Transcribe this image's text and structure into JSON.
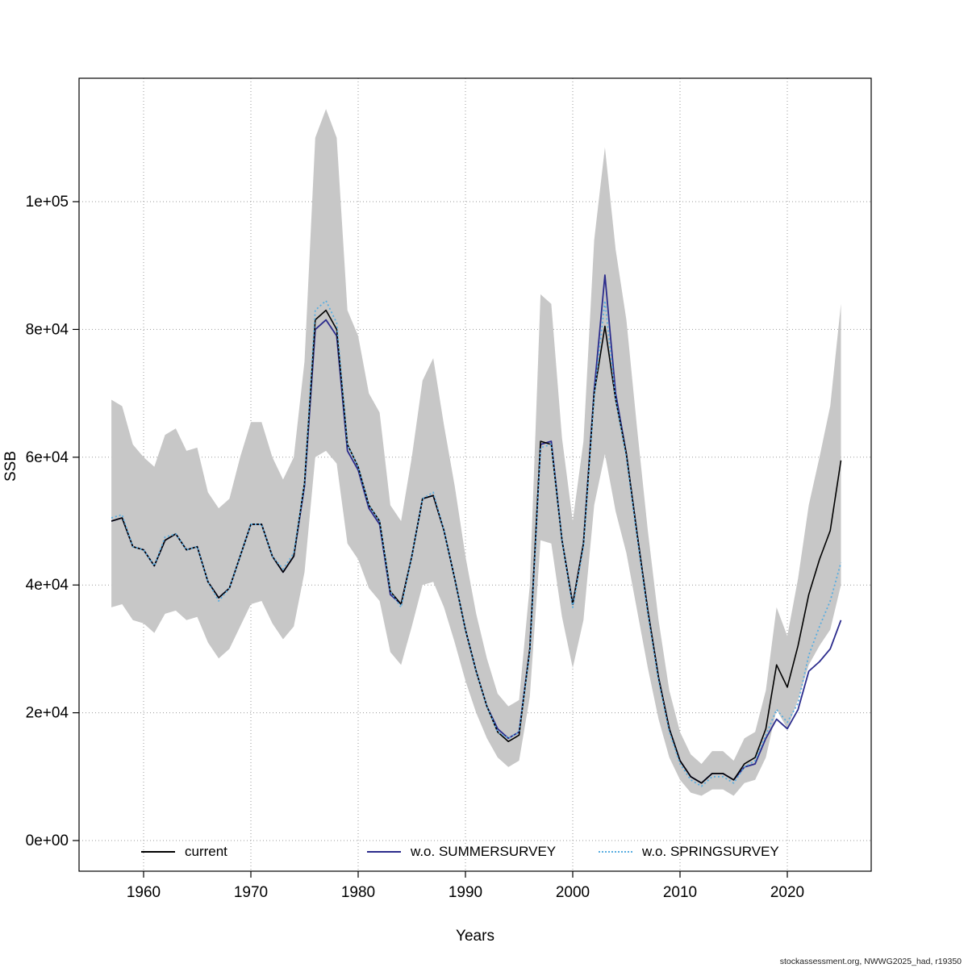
{
  "figure": {
    "footer": "stockassessment.org, NWWG2025_had, r19350"
  },
  "chart_data": {
    "type": "line",
    "title": "",
    "xlabel": "Years",
    "ylabel": "SSB",
    "grid": "dotted",
    "legend_position": "bottom-inside",
    "xlim": [
      1956,
      2026
    ],
    "ylim": [
      0,
      120000
    ],
    "xticks": [
      1960,
      1970,
      1980,
      1990,
      2000,
      2010,
      2020
    ],
    "yticks": {
      "values": [
        0,
        20000,
        40000,
        60000,
        80000,
        100000
      ],
      "labels": [
        "0e+00",
        "2e+04",
        "4e+04",
        "6e+04",
        "8e+04",
        "1e+05"
      ]
    },
    "x": [
      1957,
      1958,
      1959,
      1960,
      1961,
      1962,
      1963,
      1964,
      1965,
      1966,
      1967,
      1968,
      1969,
      1970,
      1971,
      1972,
      1973,
      1974,
      1975,
      1976,
      1977,
      1978,
      1979,
      1980,
      1981,
      1982,
      1983,
      1984,
      1985,
      1986,
      1987,
      1988,
      1989,
      1990,
      1991,
      1992,
      1993,
      1994,
      1995,
      1996,
      1997,
      1998,
      1999,
      2000,
      2001,
      2002,
      2003,
      2004,
      2005,
      2006,
      2007,
      2008,
      2009,
      2010,
      2011,
      2012,
      2013,
      2014,
      2015,
      2016,
      2017,
      2018,
      2019,
      2020,
      2021,
      2022,
      2023,
      2024,
      2025
    ],
    "series": [
      {
        "name": "current",
        "color": "#000000",
        "style": "solid",
        "values": [
          50000,
          50500,
          46000,
          45500,
          43000,
          47000,
          48000,
          45500,
          46000,
          40500,
          38000,
          39500,
          44500,
          49500,
          49500,
          44500,
          42000,
          44500,
          56000,
          81500,
          83000,
          80000,
          62000,
          58500,
          52500,
          50000,
          39000,
          37000,
          44500,
          53500,
          54000,
          48500,
          41000,
          33000,
          26500,
          21000,
          17000,
          15500,
          16500,
          30000,
          62500,
          62000,
          47000,
          37000,
          46500,
          70000,
          80500,
          69000,
          60500,
          48000,
          36000,
          25500,
          17500,
          12500,
          10000,
          9000,
          10500,
          10500,
          9500,
          12000,
          13000,
          17500,
          27500,
          24000,
          30500,
          38500,
          44000,
          48500,
          59500
        ]
      },
      {
        "name": "w.o. SUMMERSURVEY",
        "color": "#2b2b8c",
        "style": "solid",
        "values": [
          50000,
          50500,
          46000,
          45500,
          43000,
          47000,
          48000,
          45500,
          46000,
          40500,
          38000,
          39500,
          44500,
          49500,
          49500,
          44500,
          42000,
          44500,
          55500,
          80000,
          81500,
          79000,
          61000,
          58000,
          52000,
          49500,
          38500,
          37000,
          44500,
          53500,
          54000,
          48500,
          41000,
          33000,
          26500,
          21000,
          17500,
          16000,
          17000,
          30000,
          62000,
          62500,
          47000,
          37000,
          46500,
          70500,
          88500,
          70000,
          60500,
          48000,
          36000,
          25500,
          17500,
          12500,
          10000,
          9000,
          10500,
          10500,
          9500,
          11500,
          12000,
          16000,
          19000,
          17500,
          20500,
          26500,
          28000,
          30000,
          34500
        ]
      },
      {
        "name": "w.o. SPRINGSURVEY",
        "color": "#58ade0",
        "style": "dotted",
        "values": [
          50500,
          51000,
          46000,
          45500,
          43000,
          47500,
          48000,
          45500,
          46000,
          40500,
          37500,
          39500,
          44500,
          49500,
          49500,
          44500,
          42500,
          45000,
          56000,
          83000,
          84500,
          81000,
          62000,
          58500,
          52500,
          50000,
          39000,
          36500,
          44500,
          53500,
          54500,
          48500,
          41000,
          33000,
          26500,
          21000,
          17000,
          16000,
          17000,
          29500,
          61500,
          62000,
          47000,
          36500,
          46000,
          69500,
          84500,
          69000,
          60000,
          47500,
          35500,
          25000,
          17000,
          12000,
          9500,
          8500,
          10000,
          10000,
          9000,
          11500,
          12500,
          16500,
          20500,
          18500,
          21500,
          29000,
          33500,
          37500,
          43500
        ]
      }
    ],
    "band": {
      "name": "confidence-band",
      "color": "#c7c7c7",
      "lower": [
        36500,
        37000,
        34500,
        34000,
        32500,
        35500,
        36000,
        34500,
        35000,
        31000,
        28500,
        30000,
        33500,
        37000,
        37500,
        34000,
        31500,
        33500,
        42000,
        60000,
        61000,
        59000,
        46500,
        44000,
        39500,
        37500,
        29500,
        27500,
        33500,
        40000,
        40500,
        36500,
        31000,
        25000,
        20000,
        16000,
        13000,
        11500,
        12500,
        22500,
        47000,
        46500,
        35000,
        27000,
        34500,
        52500,
        60500,
        51500,
        45000,
        36000,
        27000,
        19000,
        13000,
        9500,
        7500,
        7000,
        8000,
        8000,
        7000,
        9000,
        9500,
        13000,
        20500,
        17500,
        22000,
        27500,
        30500,
        33000,
        40000
      ],
      "upper": [
        69000,
        68000,
        62000,
        60000,
        58500,
        63500,
        64500,
        61000,
        61500,
        54500,
        52000,
        53500,
        60000,
        65500,
        65500,
        60000,
        56500,
        60000,
        75000,
        110000,
        114500,
        110000,
        83000,
        79000,
        70000,
        67000,
        52500,
        50000,
        60000,
        72000,
        75500,
        65000,
        55500,
        44500,
        35500,
        28500,
        23000,
        21000,
        22000,
        40000,
        85500,
        84000,
        63000,
        50000,
        62500,
        94000,
        108500,
        92500,
        81500,
        64500,
        48500,
        34500,
        23500,
        17000,
        13500,
        12000,
        14000,
        14000,
        12500,
        16000,
        17000,
        23500,
        36500,
        32000,
        41000,
        52500,
        60000,
        68000,
        84000
      ]
    }
  }
}
